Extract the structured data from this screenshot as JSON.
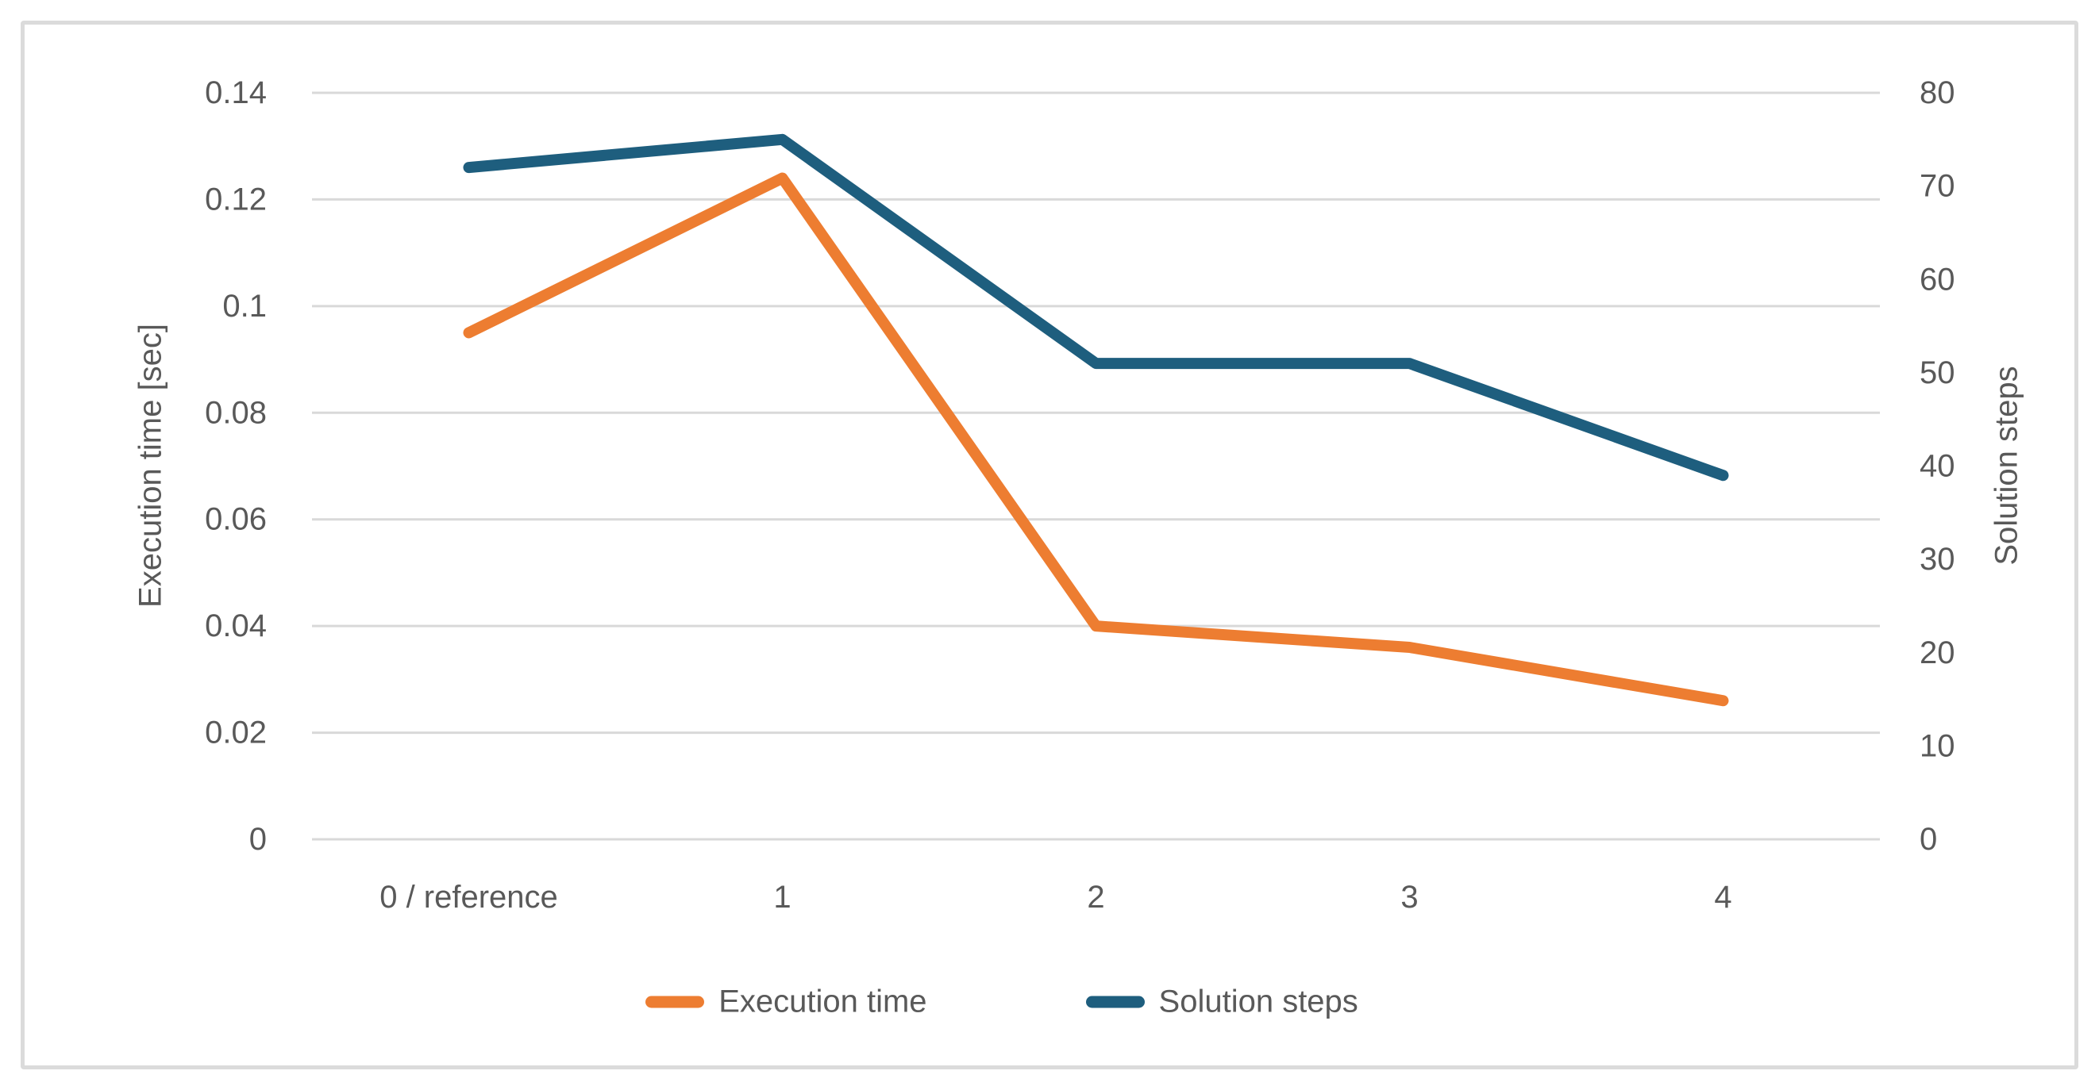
{
  "chart_data": {
    "type": "line",
    "title": "",
    "categories": [
      "0 / reference",
      "1",
      "2",
      "3",
      "4"
    ],
    "series": [
      {
        "name": "Execution time",
        "axis": "left",
        "color": "#ED7D31",
        "values": [
          0.095,
          0.124,
          0.04,
          0.036,
          0.026
        ]
      },
      {
        "name": "Solution steps",
        "axis": "right",
        "color": "#1E5E7E",
        "values": [
          72,
          75,
          51,
          51,
          39
        ]
      }
    ],
    "left_axis": {
      "label": "Execution time [sec]",
      "min": 0,
      "max": 0.14,
      "tick_values": [
        0,
        0.02,
        0.04,
        0.06,
        0.08,
        0.1,
        0.12,
        0.14
      ],
      "tick_labels": [
        "0",
        "0.02",
        "0.04",
        "0.06",
        "0.08",
        "0.1",
        "0.12",
        "0.14"
      ]
    },
    "right_axis": {
      "label": "Solution steps",
      "min": 0,
      "max": 80,
      "tick_values": [
        0,
        10,
        20,
        30,
        40,
        50,
        60,
        70,
        80
      ],
      "tick_labels": [
        "0",
        "10",
        "20",
        "30",
        "40",
        "50",
        "60",
        "70",
        "80"
      ]
    },
    "legend": {
      "position": "bottom",
      "items": [
        "Execution time",
        "Solution steps"
      ]
    },
    "grid": "horizontal",
    "colors": {
      "grid": "#D9D9D9",
      "text": "#595959",
      "border": "#DBDBDB",
      "background": "#FFFFFF"
    }
  }
}
